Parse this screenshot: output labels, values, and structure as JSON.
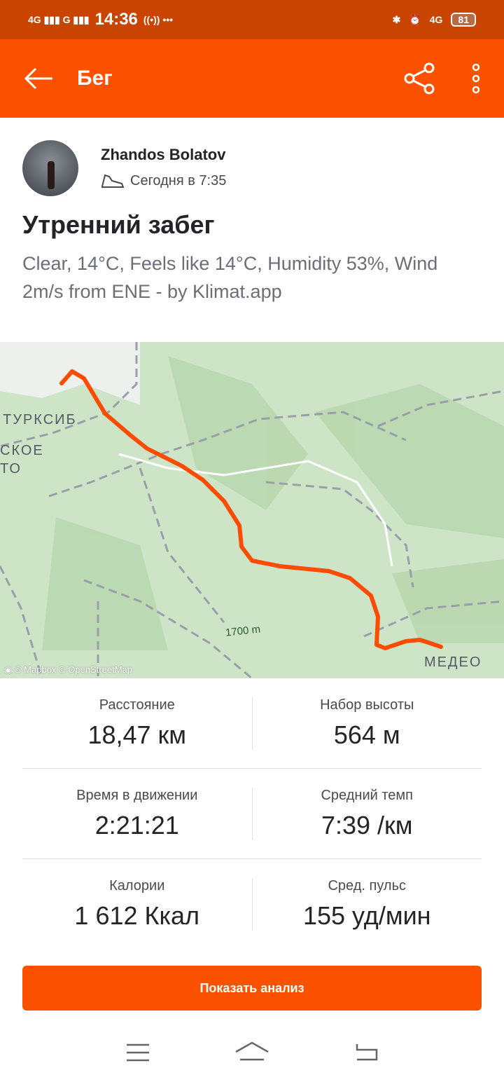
{
  "status_bar": {
    "network1": "4G",
    "network2": "G",
    "time": "14:36",
    "network3": "4G",
    "battery": "81"
  },
  "app_bar": {
    "title": "Бег"
  },
  "activity": {
    "athlete": "Zhandos Bolatov",
    "time": "Сегодня в 7:35",
    "title": "Утренний забег",
    "description": "Clear, 14°C, Feels like 14°C, Humidity 53%, Wind 2m/s from ENE - by Klimat.app"
  },
  "map": {
    "labels": [
      "ТУРКСИБ",
      "СКОЕ",
      "ТО",
      "1700 m",
      "МЕДЕО"
    ],
    "attribution": "© Mapbox © OpenStreetMap",
    "route_color": "#fc4c02"
  },
  "stats": [
    [
      {
        "label": "Расстояние",
        "value": "18,47 км"
      },
      {
        "label": "Набор высоты",
        "value": "564 м"
      }
    ],
    [
      {
        "label": "Время в движении",
        "value": "2:21:21"
      },
      {
        "label": "Средний темп",
        "value": "7:39 /км"
      }
    ],
    [
      {
        "label": "Калории",
        "value": "1 612 Ккал"
      },
      {
        "label": "Сред. пульс",
        "value": "155 уд/мин"
      }
    ]
  ],
  "analysis_button": "Показать анализ",
  "colors": {
    "accent": "#fc5200",
    "status_bar": "#c94400"
  }
}
